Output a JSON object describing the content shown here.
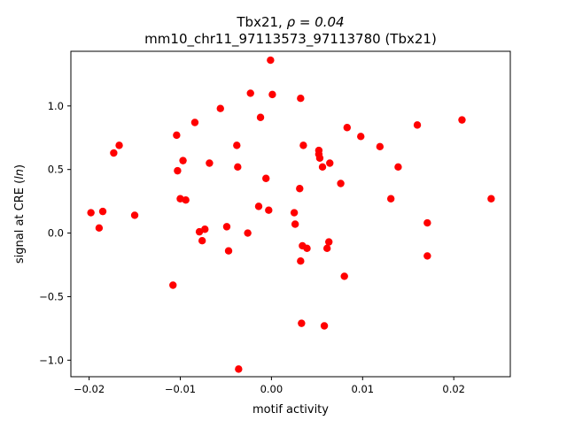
{
  "chart_data": {
    "type": "scatter",
    "title_line1_prefix": "Tbx21, ",
    "title_line1_rho": "ρ = 0.04",
    "title_line2": "mm10_chr11_97113573_97113780 (Tbx21)",
    "xlabel": "motif activity",
    "ylabel_prefix": "signal at CRE (",
    "ylabel_italic": "ln",
    "ylabel_suffix": ")",
    "xlim": [
      -0.022,
      0.0262
    ],
    "ylim": [
      -1.13,
      1.43
    ],
    "xticks": [
      -0.02,
      -0.01,
      0.0,
      0.01,
      0.02
    ],
    "xtick_labels": [
      "−0.02",
      "−0.01",
      "0.00",
      "0.01",
      "0.02"
    ],
    "yticks": [
      -1.0,
      -0.5,
      0.0,
      0.5,
      1.0
    ],
    "ytick_labels": [
      "−1.0",
      "−0.5",
      "0.0",
      "0.5",
      "1.0"
    ],
    "grid": false,
    "marker_color": "#ff0000",
    "points": [
      {
        "x": -0.0198,
        "y": 0.16
      },
      {
        "x": -0.0189,
        "y": 0.04
      },
      {
        "x": -0.0185,
        "y": 0.17
      },
      {
        "x": -0.0173,
        "y": 0.63
      },
      {
        "x": -0.0167,
        "y": 0.69
      },
      {
        "x": -0.015,
        "y": 0.14
      },
      {
        "x": -0.0108,
        "y": -0.41
      },
      {
        "x": -0.0104,
        "y": 0.77
      },
      {
        "x": -0.0103,
        "y": 0.49
      },
      {
        "x": -0.01,
        "y": 0.27
      },
      {
        "x": -0.0097,
        "y": 0.57
      },
      {
        "x": -0.0094,
        "y": 0.26
      },
      {
        "x": -0.0084,
        "y": 0.87
      },
      {
        "x": -0.0079,
        "y": 0.01
      },
      {
        "x": -0.0076,
        "y": -0.06
      },
      {
        "x": -0.0073,
        "y": 0.03
      },
      {
        "x": -0.0068,
        "y": 0.55
      },
      {
        "x": -0.0056,
        "y": 0.98
      },
      {
        "x": -0.0049,
        "y": 0.05
      },
      {
        "x": -0.0047,
        "y": -0.14
      },
      {
        "x": -0.0038,
        "y": 0.69
      },
      {
        "x": -0.0037,
        "y": 0.52
      },
      {
        "x": -0.0036,
        "y": -1.07
      },
      {
        "x": -0.0026,
        "y": 0.0
      },
      {
        "x": -0.0023,
        "y": 1.1
      },
      {
        "x": -0.0014,
        "y": 0.21
      },
      {
        "x": -0.0012,
        "y": 0.91
      },
      {
        "x": -0.0006,
        "y": 0.43
      },
      {
        "x": -0.0003,
        "y": 0.18
      },
      {
        "x": -0.0001,
        "y": 1.36
      },
      {
        "x": 0.0001,
        "y": 1.09
      },
      {
        "x": 0.0025,
        "y": 0.16
      },
      {
        "x": 0.0026,
        "y": 0.07
      },
      {
        "x": 0.0031,
        "y": 0.35
      },
      {
        "x": 0.0032,
        "y": -0.22
      },
      {
        "x": 0.0032,
        "y": 1.06
      },
      {
        "x": 0.0033,
        "y": -0.71
      },
      {
        "x": 0.0034,
        "y": -0.1
      },
      {
        "x": 0.0035,
        "y": 0.69
      },
      {
        "x": 0.0039,
        "y": -0.12
      },
      {
        "x": 0.0052,
        "y": 0.65
      },
      {
        "x": 0.0052,
        "y": 0.62
      },
      {
        "x": 0.0053,
        "y": 0.59
      },
      {
        "x": 0.0056,
        "y": 0.52
      },
      {
        "x": 0.0058,
        "y": -0.73
      },
      {
        "x": 0.0061,
        "y": -0.12
      },
      {
        "x": 0.0063,
        "y": -0.07
      },
      {
        "x": 0.0064,
        "y": 0.55
      },
      {
        "x": 0.0076,
        "y": 0.39
      },
      {
        "x": 0.008,
        "y": -0.34
      },
      {
        "x": 0.0083,
        "y": 0.83
      },
      {
        "x": 0.0098,
        "y": 0.76
      },
      {
        "x": 0.0119,
        "y": 0.68
      },
      {
        "x": 0.0131,
        "y": 0.27
      },
      {
        "x": 0.0139,
        "y": 0.52
      },
      {
        "x": 0.016,
        "y": 0.85
      },
      {
        "x": 0.0171,
        "y": 0.08
      },
      {
        "x": 0.0171,
        "y": -0.18
      },
      {
        "x": 0.0209,
        "y": 0.89
      },
      {
        "x": 0.0241,
        "y": 0.27
      }
    ]
  }
}
